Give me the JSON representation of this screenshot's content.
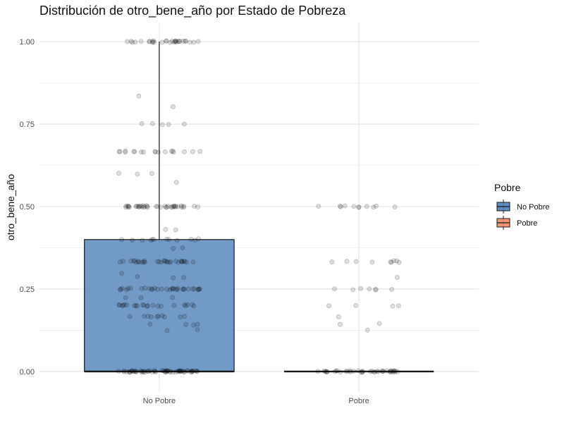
{
  "chart_data": {
    "type": "boxplot",
    "title": "Distribución de otro_bene_año por Estado de Pobreza",
    "xlabel": "",
    "ylabel": "otro_bene_año",
    "categories": [
      "No Pobre",
      "Pobre"
    ],
    "ylim": [
      -0.06,
      1.06
    ],
    "yticks": [
      0.0,
      0.25,
      0.5,
      0.75,
      1.0
    ],
    "ytick_labels": [
      "0.00",
      "0.25",
      "0.50",
      "0.75",
      "1.00"
    ],
    "grid": true,
    "legend": {
      "title": "Pobre",
      "placement": "right",
      "entries": [
        {
          "label": "No Pobre",
          "color": "#4f81b9"
        },
        {
          "label": "Pobre",
          "color": "#ee8866"
        }
      ]
    },
    "boxes": [
      {
        "category": "No Pobre",
        "min": 0.0,
        "q1": 0.0,
        "median": 0.0,
        "q3": 0.4,
        "max": 1.0,
        "fill": "#4f81b9"
      },
      {
        "category": "Pobre",
        "min": 0.0,
        "q1": 0.0,
        "median": 0.0,
        "q3": 0.0,
        "max": 0.0,
        "fill": "#ee8866"
      }
    ],
    "jitter_points": [
      {
        "category": "No Pobre",
        "values": [
          1.0,
          1.0,
          1.0,
          1.0,
          1.0,
          1.0,
          1.0,
          1.0,
          1.0,
          1.0,
          1.0,
          1.0,
          1.0,
          1.0,
          1.0,
          1.0,
          1.0,
          1.0,
          1.0,
          1.0,
          1.0,
          1.0,
          1.0,
          1.0,
          1.0,
          1.0,
          1.0,
          1.0,
          1.0,
          1.0,
          0.833,
          0.8,
          0.75,
          0.75,
          0.75,
          0.75,
          0.75,
          0.667,
          0.667,
          0.667,
          0.667,
          0.667,
          0.667,
          0.667,
          0.667,
          0.667,
          0.667,
          0.667,
          0.667,
          0.667,
          0.667,
          0.667,
          0.667,
          0.667,
          0.667,
          0.6,
          0.6,
          0.6,
          0.575,
          0.5,
          0.5,
          0.5,
          0.5,
          0.5,
          0.5,
          0.5,
          0.5,
          0.5,
          0.5,
          0.5,
          0.5,
          0.5,
          0.5,
          0.5,
          0.5,
          0.5,
          0.5,
          0.5,
          0.5,
          0.5,
          0.5,
          0.5,
          0.5,
          0.5,
          0.5,
          0.5,
          0.5,
          0.5,
          0.5,
          0.5,
          0.5,
          0.5,
          0.5,
          0.5,
          0.5,
          0.5,
          0.5,
          0.5,
          0.5,
          0.43,
          0.43,
          0.4,
          0.4,
          0.4,
          0.4,
          0.4,
          0.4,
          0.4,
          0.4,
          0.4,
          0.4,
          0.4,
          0.4,
          0.375,
          0.375,
          0.333,
          0.333,
          0.333,
          0.333,
          0.333,
          0.333,
          0.333,
          0.333,
          0.333,
          0.333,
          0.333,
          0.333,
          0.333,
          0.333,
          0.333,
          0.333,
          0.333,
          0.333,
          0.333,
          0.333,
          0.333,
          0.333,
          0.333,
          0.333,
          0.333,
          0.333,
          0.333,
          0.333,
          0.333,
          0.333,
          0.3,
          0.286,
          0.286,
          0.286,
          0.25,
          0.25,
          0.25,
          0.25,
          0.25,
          0.25,
          0.25,
          0.25,
          0.25,
          0.25,
          0.25,
          0.25,
          0.25,
          0.25,
          0.25,
          0.25,
          0.25,
          0.25,
          0.25,
          0.25,
          0.25,
          0.25,
          0.25,
          0.25,
          0.25,
          0.25,
          0.25,
          0.25,
          0.25,
          0.25,
          0.25,
          0.25,
          0.222,
          0.222,
          0.222,
          0.2,
          0.2,
          0.2,
          0.2,
          0.2,
          0.2,
          0.2,
          0.2,
          0.2,
          0.2,
          0.2,
          0.2,
          0.2,
          0.2,
          0.2,
          0.2,
          0.2,
          0.2,
          0.2,
          0.2,
          0.2,
          0.2,
          0.167,
          0.167,
          0.167,
          0.167,
          0.167,
          0.167,
          0.167,
          0.167,
          0.167,
          0.167,
          0.143,
          0.143,
          0.143,
          0.143,
          0.125,
          0.125,
          0.0,
          0.0,
          0.0,
          0.0,
          0.0,
          0.0,
          0.0,
          0.0,
          0.0,
          0.0,
          0.0,
          0.0,
          0.0,
          0.0,
          0.0,
          0.0,
          0.0,
          0.0,
          0.0,
          0.0,
          0.0,
          0.0,
          0.0,
          0.0,
          0.0,
          0.0,
          0.0,
          0.0,
          0.0,
          0.0,
          0.0,
          0.0,
          0.0,
          0.0,
          0.0,
          0.0,
          0.0,
          0.0,
          0.0,
          0.0,
          0.0,
          0.0,
          0.0,
          0.0,
          0.0,
          0.0,
          0.0,
          0.0,
          0.0,
          0.0,
          0.0,
          0.0,
          0.0,
          0.0,
          0.0,
          0.0,
          0.0,
          0.0,
          0.0,
          0.0
        ]
      },
      {
        "category": "Pobre",
        "values": [
          0.5,
          0.5,
          0.5,
          0.5,
          0.5,
          0.5,
          0.5,
          0.5,
          0.5,
          0.5,
          0.5,
          0.333,
          0.333,
          0.333,
          0.333,
          0.333,
          0.333,
          0.333,
          0.333,
          0.333,
          0.286,
          0.25,
          0.25,
          0.25,
          0.25,
          0.25,
          0.25,
          0.25,
          0.2,
          0.2,
          0.2,
          0.2,
          0.167,
          0.143,
          0.143,
          0.125,
          0.0,
          0.0,
          0.0,
          0.0,
          0.0,
          0.0,
          0.0,
          0.0,
          0.0,
          0.0,
          0.0,
          0.0,
          0.0,
          0.0,
          0.0,
          0.0,
          0.0,
          0.0,
          0.0,
          0.0,
          0.0,
          0.0,
          0.0,
          0.0,
          0.0,
          0.0,
          0.0,
          0.0,
          0.0,
          0.0,
          0.0,
          0.0,
          0.0,
          0.0,
          0.0,
          0.0,
          0.0,
          0.0,
          0.0,
          0.0
        ]
      }
    ]
  }
}
